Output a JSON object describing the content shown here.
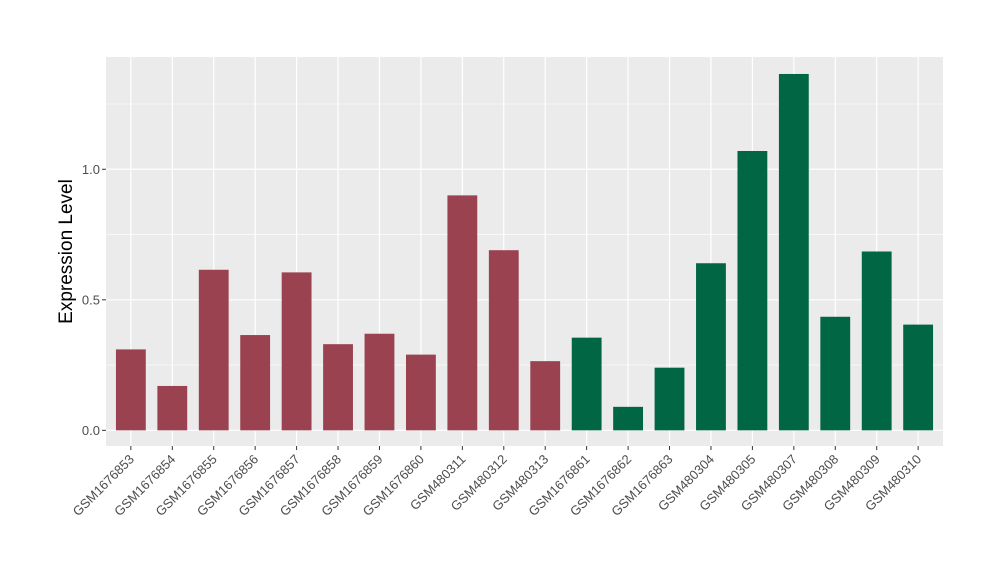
{
  "chart_data": {
    "type": "bar",
    "title": "",
    "xlabel": "",
    "ylabel": "Expression Level",
    "ylim": [
      -0.06,
      1.43
    ],
    "yticks": [
      0.0,
      0.5,
      1.0
    ],
    "ytick_labels": [
      "0.0",
      "0.5",
      "1.0"
    ],
    "grid": true,
    "legend": "none",
    "categories": [
      "GSM1676853",
      "GSM1676854",
      "GSM1676855",
      "GSM1676856",
      "GSM1676857",
      "GSM1676858",
      "GSM1676859",
      "GSM1676860",
      "GSM480311",
      "GSM480312",
      "GSM480313",
      "GSM1676861",
      "GSM1676862",
      "GSM1676863",
      "GSM480304",
      "GSM480305",
      "GSM480307",
      "GSM480308",
      "GSM480309",
      "GSM480310"
    ],
    "values": [
      0.31,
      0.17,
      0.615,
      0.365,
      0.605,
      0.33,
      0.37,
      0.29,
      0.9,
      0.69,
      0.265,
      0.355,
      0.09,
      0.24,
      0.64,
      1.07,
      1.365,
      0.435,
      0.685,
      0.405
    ],
    "groups": [
      0,
      0,
      0,
      0,
      0,
      0,
      0,
      0,
      0,
      0,
      0,
      1,
      1,
      1,
      1,
      1,
      1,
      1,
      1,
      1
    ],
    "colors": [
      "#9a4250",
      "#006644"
    ],
    "panel_background": "#ebebeb",
    "grid_color": "#ffffff"
  }
}
